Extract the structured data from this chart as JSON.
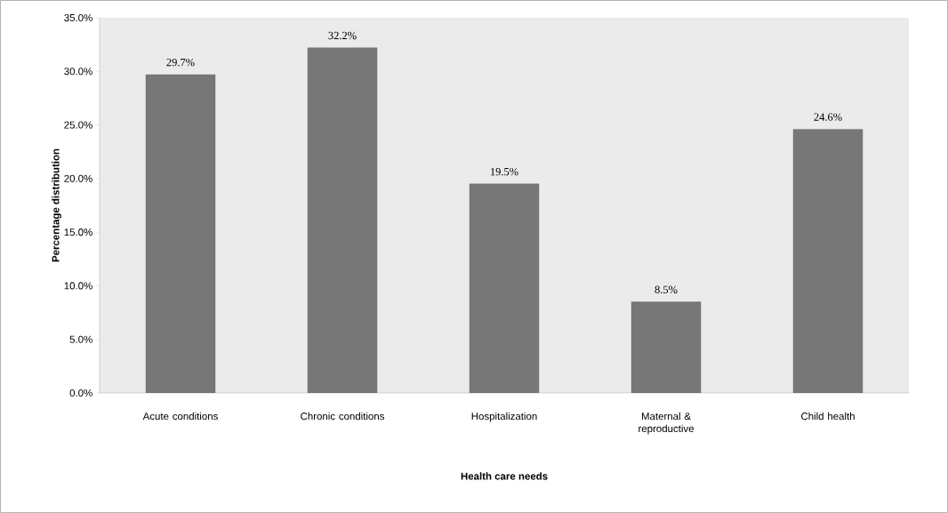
{
  "chart_data": {
    "type": "bar",
    "xlabel": "Health care needs",
    "ylabel": "Percentage distribution",
    "categories": [
      "Acute conditions",
      "Chronic conditions",
      "Hospitalization",
      "Maternal & reproductive",
      "Child health"
    ],
    "values": [
      29.7,
      32.2,
      19.5,
      8.5,
      24.6
    ],
    "value_labels": [
      "29.7%",
      "32.2%",
      "19.5%",
      "8.5%",
      "24.6%"
    ],
    "color": "#777777",
    "ylim": [
      0,
      35
    ],
    "yticks": [
      {
        "value": 0,
        "label": "0.0%"
      },
      {
        "value": 5,
        "label": "5.0%"
      },
      {
        "value": 10,
        "label": "10.0%"
      },
      {
        "value": 15,
        "label": "15.0%"
      },
      {
        "value": 20,
        "label": "20.0%"
      },
      {
        "value": 25,
        "label": "25.0%"
      },
      {
        "value": 30,
        "label": "30.0%"
      },
      {
        "value": 35,
        "label": "35.0%"
      }
    ],
    "grid": false
  }
}
